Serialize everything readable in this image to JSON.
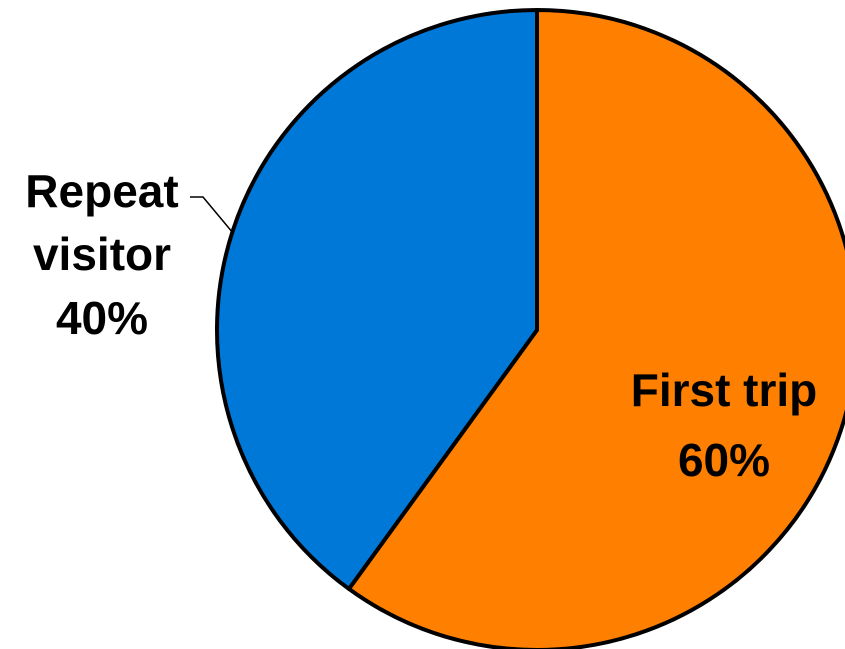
{
  "chart_data": {
    "type": "pie",
    "title": "",
    "start_angle_deg": 0,
    "direction": "clockwise",
    "slices": [
      {
        "label": "First trip",
        "value": 60,
        "percent_label": "60%",
        "color": "#FF7F00"
      },
      {
        "label": "Repeat visitor",
        "label_lines": [
          "Repeat",
          "visitor"
        ],
        "value": 40,
        "percent_label": "40%",
        "color": "#0078D7"
      }
    ]
  }
}
